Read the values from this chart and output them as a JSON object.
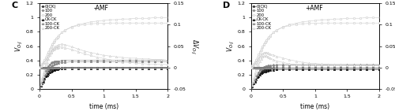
{
  "panel_C_title": "C",
  "panel_D_title": "D",
  "subtitle_C": "-AMF",
  "subtitle_D": "+AMF",
  "xlabel": "time (ms)",
  "xlim": [
    0,
    2.0
  ],
  "ylim_left": [
    0,
    1.2
  ],
  "ylim_right": [
    -0.05,
    0.15
  ],
  "xticks": [
    0,
    0.5,
    1.0,
    1.5,
    2.0
  ],
  "xticklabels": [
    "0",
    "0.5",
    "1",
    "1.5",
    "2"
  ],
  "yticks_left": [
    0,
    0.2,
    0.4,
    0.6,
    0.8,
    1.0,
    1.2
  ],
  "yticklabels_left": [
    "0",
    "0.2",
    "0.4",
    "0.6",
    "0.8",
    "1",
    "1.2"
  ],
  "yticks_right": [
    -0.05,
    0,
    0.05,
    0.1,
    0.15
  ],
  "yticklabels_right": [
    "-0.05",
    "0",
    "0.05",
    "0.1",
    "0.15"
  ],
  "legend_labels": [
    "0(CK)",
    "100",
    "200",
    "CK-CK",
    "100-CK",
    "200-CK"
  ],
  "time_points": [
    0.0,
    0.02,
    0.04,
    0.06,
    0.08,
    0.1,
    0.12,
    0.14,
    0.16,
    0.18,
    0.2,
    0.22,
    0.24,
    0.26,
    0.28,
    0.3,
    0.35,
    0.4,
    0.5,
    0.6,
    0.7,
    0.8,
    0.9,
    1.0,
    1.1,
    1.2,
    1.3,
    1.4,
    1.5,
    1.6,
    1.7,
    1.8,
    1.9,
    2.0
  ],
  "panel_C": {
    "VOJ_0CK": [
      0.0,
      0.04,
      0.08,
      0.12,
      0.16,
      0.19,
      0.22,
      0.24,
      0.26,
      0.27,
      0.28,
      0.285,
      0.288,
      0.29,
      0.29,
      0.29,
      0.295,
      0.3,
      0.3,
      0.3,
      0.3,
      0.3,
      0.3,
      0.3,
      0.3,
      0.3,
      0.3,
      0.3,
      0.3,
      0.3,
      0.3,
      0.3,
      0.3,
      0.3
    ],
    "VOJ_100": [
      0.0,
      0.05,
      0.1,
      0.15,
      0.2,
      0.25,
      0.29,
      0.32,
      0.34,
      0.36,
      0.37,
      0.375,
      0.38,
      0.385,
      0.39,
      0.39,
      0.395,
      0.4,
      0.4,
      0.4,
      0.4,
      0.4,
      0.4,
      0.4,
      0.4,
      0.4,
      0.4,
      0.4,
      0.4,
      0.4,
      0.4,
      0.4,
      0.4,
      0.4
    ],
    "VOJ_200": [
      0.0,
      0.07,
      0.14,
      0.21,
      0.28,
      0.35,
      0.42,
      0.49,
      0.54,
      0.58,
      0.62,
      0.65,
      0.67,
      0.7,
      0.72,
      0.74,
      0.79,
      0.82,
      0.87,
      0.9,
      0.92,
      0.94,
      0.95,
      0.96,
      0.97,
      0.97,
      0.98,
      0.98,
      0.99,
      0.99,
      0.99,
      1.0,
      1.0,
      1.0
    ],
    "VOJ_CKCK": [
      0.0,
      0.04,
      0.07,
      0.1,
      0.14,
      0.17,
      0.19,
      0.21,
      0.23,
      0.24,
      0.25,
      0.26,
      0.265,
      0.27,
      0.275,
      0.28,
      0.285,
      0.29,
      0.29,
      0.29,
      0.29,
      0.29,
      0.29,
      0.29,
      0.29,
      0.29,
      0.29,
      0.29,
      0.29,
      0.29,
      0.29,
      0.29,
      0.29,
      0.29
    ],
    "VOJ_100CK": [
      0.0,
      0.05,
      0.09,
      0.13,
      0.17,
      0.21,
      0.24,
      0.27,
      0.3,
      0.32,
      0.33,
      0.34,
      0.35,
      0.355,
      0.36,
      0.36,
      0.37,
      0.37,
      0.38,
      0.38,
      0.38,
      0.38,
      0.38,
      0.38,
      0.38,
      0.38,
      0.38,
      0.38,
      0.38,
      0.38,
      0.38,
      0.38,
      0.38,
      0.38
    ],
    "VOJ_200CK": [
      0.0,
      0.06,
      0.12,
      0.18,
      0.24,
      0.3,
      0.36,
      0.42,
      0.47,
      0.51,
      0.55,
      0.57,
      0.59,
      0.6,
      0.61,
      0.62,
      0.63,
      0.62,
      0.59,
      0.56,
      0.53,
      0.51,
      0.49,
      0.47,
      0.46,
      0.45,
      0.44,
      0.43,
      0.43,
      0.42,
      0.42,
      0.41,
      0.41,
      0.4
    ],
    "dVOJ_0CK": [
      0.0,
      0.0,
      0.0,
      0.0,
      0.0,
      0.0,
      0.0,
      0.0,
      0.0,
      0.0,
      0.0,
      0.0,
      0.0,
      0.0,
      0.0,
      0.0,
      0.0,
      0.0,
      0.0,
      0.0,
      0.0,
      0.0,
      0.0,
      0.0,
      0.0,
      0.0,
      0.0,
      0.0,
      0.0,
      0.0,
      0.0,
      0.0,
      0.0,
      0.0
    ],
    "dVOJ_100": [
      0.0,
      0.0,
      0.0,
      0.0,
      0.0,
      0.0,
      0.0,
      0.0,
      0.0,
      0.0,
      0.0,
      0.0,
      0.0,
      0.0,
      0.0,
      0.0,
      0.0,
      0.0,
      0.0,
      0.0,
      0.0,
      0.0,
      0.0,
      0.0,
      0.0,
      0.0,
      0.0,
      0.0,
      0.0,
      0.0,
      0.0,
      0.0,
      0.0,
      0.0
    ],
    "dVOJ_200": [
      0.0,
      0.004,
      0.008,
      0.013,
      0.018,
      0.024,
      0.03,
      0.037,
      0.043,
      0.049,
      0.055,
      0.06,
      0.064,
      0.068,
      0.072,
      0.075,
      0.082,
      0.088,
      0.094,
      0.098,
      0.1,
      0.102,
      0.103,
      0.103,
      0.104,
      0.104,
      0.104,
      0.104,
      0.104,
      0.104,
      0.104,
      0.104,
      0.104,
      0.104
    ],
    "dVOJ_CKCK": [
      0.0,
      0.0,
      0.0,
      0.0,
      0.0,
      0.0,
      0.0,
      0.0,
      0.0,
      0.0,
      0.0,
      0.0,
      0.0,
      0.0,
      0.0,
      0.0,
      0.0,
      0.0,
      0.0,
      0.0,
      0.0,
      0.0,
      0.0,
      0.0,
      0.0,
      0.0,
      0.0,
      0.0,
      0.0,
      0.0,
      0.0,
      0.0,
      0.0,
      0.0
    ],
    "dVOJ_100CK": [
      0.0,
      0.0,
      0.0,
      0.0,
      0.0,
      0.0,
      0.0,
      0.0,
      0.0,
      0.0,
      0.0,
      0.0,
      0.0,
      0.0,
      0.0,
      0.0,
      0.0,
      0.0,
      0.0,
      0.0,
      0.0,
      0.0,
      0.0,
      0.0,
      0.0,
      0.0,
      0.0,
      0.0,
      0.0,
      0.0,
      0.0,
      0.0,
      0.0,
      0.0
    ],
    "dVOJ_200CK": [
      0.0,
      0.003,
      0.006,
      0.01,
      0.013,
      0.017,
      0.022,
      0.027,
      0.032,
      0.036,
      0.04,
      0.042,
      0.044,
      0.045,
      0.046,
      0.047,
      0.048,
      0.046,
      0.042,
      0.037,
      0.032,
      0.028,
      0.024,
      0.021,
      0.018,
      0.016,
      0.013,
      0.012,
      0.01,
      0.009,
      0.008,
      0.008,
      0.007,
      0.007
    ]
  },
  "panel_D": {
    "VOJ_0CK": [
      0.0,
      0.04,
      0.08,
      0.11,
      0.15,
      0.18,
      0.2,
      0.22,
      0.24,
      0.25,
      0.26,
      0.265,
      0.27,
      0.275,
      0.28,
      0.28,
      0.285,
      0.29,
      0.29,
      0.29,
      0.29,
      0.29,
      0.29,
      0.29,
      0.29,
      0.29,
      0.29,
      0.29,
      0.29,
      0.29,
      0.29,
      0.29,
      0.29,
      0.29
    ],
    "VOJ_100": [
      0.0,
      0.04,
      0.09,
      0.13,
      0.17,
      0.2,
      0.23,
      0.26,
      0.28,
      0.29,
      0.3,
      0.305,
      0.31,
      0.315,
      0.32,
      0.32,
      0.325,
      0.33,
      0.33,
      0.33,
      0.33,
      0.33,
      0.33,
      0.33,
      0.33,
      0.33,
      0.33,
      0.33,
      0.33,
      0.33,
      0.33,
      0.33,
      0.33,
      0.33
    ],
    "VOJ_200": [
      0.0,
      0.07,
      0.14,
      0.21,
      0.28,
      0.35,
      0.42,
      0.49,
      0.54,
      0.58,
      0.62,
      0.65,
      0.67,
      0.7,
      0.72,
      0.74,
      0.79,
      0.82,
      0.87,
      0.9,
      0.92,
      0.94,
      0.95,
      0.96,
      0.97,
      0.97,
      0.98,
      0.98,
      0.99,
      0.99,
      0.99,
      1.0,
      1.0,
      1.0
    ],
    "VOJ_CKCK": [
      0.0,
      0.035,
      0.07,
      0.1,
      0.13,
      0.16,
      0.18,
      0.2,
      0.22,
      0.23,
      0.24,
      0.245,
      0.25,
      0.255,
      0.26,
      0.26,
      0.265,
      0.27,
      0.27,
      0.27,
      0.27,
      0.27,
      0.27,
      0.27,
      0.27,
      0.27,
      0.27,
      0.27,
      0.27,
      0.27,
      0.27,
      0.27,
      0.27,
      0.27
    ],
    "VOJ_100CK": [
      0.0,
      0.045,
      0.09,
      0.13,
      0.17,
      0.2,
      0.23,
      0.26,
      0.28,
      0.3,
      0.31,
      0.315,
      0.32,
      0.325,
      0.33,
      0.33,
      0.335,
      0.34,
      0.34,
      0.34,
      0.34,
      0.34,
      0.34,
      0.34,
      0.34,
      0.34,
      0.34,
      0.34,
      0.34,
      0.34,
      0.34,
      0.34,
      0.34,
      0.34
    ],
    "VOJ_200CK": [
      0.0,
      0.05,
      0.11,
      0.16,
      0.22,
      0.28,
      0.33,
      0.38,
      0.42,
      0.45,
      0.46,
      0.46,
      0.46,
      0.45,
      0.44,
      0.43,
      0.41,
      0.39,
      0.37,
      0.35,
      0.34,
      0.33,
      0.33,
      0.33,
      0.33,
      0.33,
      0.33,
      0.33,
      0.33,
      0.33,
      0.33,
      0.33,
      0.33,
      0.33
    ],
    "dVOJ_0CK": [
      0.0,
      0.0,
      0.0,
      0.0,
      0.0,
      0.0,
      0.0,
      0.0,
      0.0,
      0.0,
      0.0,
      0.0,
      0.0,
      0.0,
      0.0,
      0.0,
      0.0,
      0.0,
      0.0,
      0.0,
      0.0,
      0.0,
      0.0,
      0.0,
      0.0,
      0.0,
      0.0,
      0.0,
      0.0,
      0.0,
      0.0,
      0.0,
      0.0,
      0.0
    ],
    "dVOJ_100": [
      0.0,
      0.0,
      0.0,
      0.0,
      0.0,
      0.0,
      0.0,
      0.0,
      0.0,
      0.0,
      0.0,
      0.0,
      0.0,
      0.0,
      0.0,
      0.0,
      0.0,
      0.0,
      0.0,
      0.0,
      0.0,
      0.0,
      0.0,
      0.0,
      0.0,
      0.0,
      0.0,
      0.0,
      0.0,
      0.0,
      0.0,
      0.0,
      0.0,
      0.0
    ],
    "dVOJ_200": [
      0.0,
      0.004,
      0.008,
      0.013,
      0.018,
      0.024,
      0.03,
      0.037,
      0.043,
      0.049,
      0.055,
      0.06,
      0.064,
      0.068,
      0.072,
      0.075,
      0.082,
      0.088,
      0.094,
      0.098,
      0.1,
      0.102,
      0.103,
      0.103,
      0.104,
      0.104,
      0.104,
      0.104,
      0.104,
      0.104,
      0.104,
      0.104,
      0.104,
      0.104
    ],
    "dVOJ_CKCK": [
      0.0,
      0.0,
      0.0,
      0.0,
      0.0,
      0.0,
      0.0,
      0.0,
      0.0,
      0.0,
      0.0,
      0.0,
      0.0,
      0.0,
      0.0,
      0.0,
      0.0,
      0.0,
      0.0,
      0.0,
      0.0,
      0.0,
      0.0,
      0.0,
      0.0,
      0.0,
      0.0,
      0.0,
      0.0,
      0.0,
      0.0,
      0.0,
      0.0,
      0.0
    ],
    "dVOJ_100CK": [
      0.0,
      0.0,
      0.0,
      0.0,
      0.0,
      0.0,
      0.0,
      0.0,
      0.0,
      0.0,
      0.0,
      0.0,
      0.0,
      0.0,
      0.0,
      0.0,
      0.0,
      0.0,
      0.0,
      0.0,
      0.0,
      0.0,
      0.0,
      0.0,
      0.0,
      0.0,
      0.0,
      0.0,
      0.0,
      0.0,
      0.0,
      0.0,
      0.0,
      0.0
    ],
    "dVOJ_200CK": [
      0.0,
      0.002,
      0.005,
      0.009,
      0.012,
      0.016,
      0.02,
      0.025,
      0.029,
      0.032,
      0.034,
      0.035,
      0.035,
      0.034,
      0.033,
      0.031,
      0.029,
      0.026,
      0.022,
      0.018,
      0.015,
      0.012,
      0.01,
      0.009,
      0.008,
      0.007,
      0.006,
      0.006,
      0.005,
      0.005,
      0.005,
      0.004,
      0.004,
      0.004
    ]
  }
}
